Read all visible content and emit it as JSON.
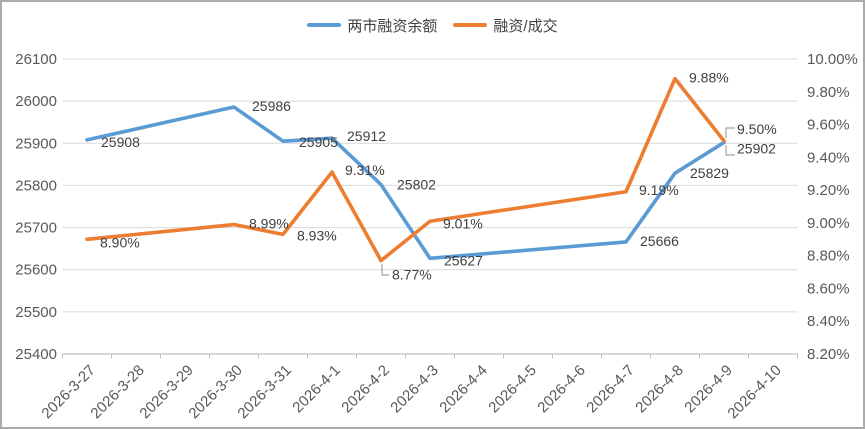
{
  "legend": {
    "items": [
      {
        "label": "两市融资余额",
        "color": "#5B9BD5"
      },
      {
        "label": "融资/成交",
        "color": "#ED7D31"
      }
    ]
  },
  "chart_data": {
    "type": "line",
    "title": "",
    "categories": [
      "2026-3-27",
      "2026-3-28",
      "2026-3-29",
      "2026-3-30",
      "2026-3-31",
      "2026-4-1",
      "2026-4-2",
      "2026-4-3",
      "2026-4-4",
      "2026-4-5",
      "2026-4-6",
      "2026-4-7",
      "2026-4-8",
      "2026-4-9",
      "2026-4-10"
    ],
    "series": [
      {
        "name": "两市融资余额",
        "axis": "left",
        "color": "#5B9BD5",
        "values": [
          25908,
          null,
          null,
          25986,
          25905,
          25912,
          25802,
          25627,
          null,
          null,
          null,
          25666,
          25829,
          25902,
          null
        ],
        "labels": [
          "25908",
          null,
          null,
          "25986",
          "25905",
          "25912",
          "25802",
          "25627",
          null,
          null,
          null,
          "25666",
          "25829",
          "25902",
          null
        ]
      },
      {
        "name": "融资/成交",
        "axis": "right",
        "color": "#ED7D31",
        "values": [
          8.9,
          null,
          null,
          8.99,
          8.93,
          9.31,
          8.77,
          9.01,
          null,
          null,
          null,
          9.19,
          9.88,
          9.5,
          null
        ],
        "labels": [
          "8.90%",
          null,
          null,
          "8.99%",
          "8.93%",
          "9.31%",
          "8.77%",
          "9.01%",
          null,
          null,
          null,
          "9.19%",
          "9.88%",
          "9.50%",
          null
        ]
      }
    ],
    "left_axis": {
      "min": 25400,
      "max": 26100,
      "tick_labels": [
        "26100",
        "26000",
        "25900",
        "25800",
        "25700",
        "25600",
        "25500",
        "25400"
      ]
    },
    "right_axis": {
      "min": 8.2,
      "max": 10.0,
      "tick_labels": [
        "10.00%",
        "9.80%",
        "9.60%",
        "9.40%",
        "9.20%",
        "9.00%",
        "8.80%",
        "8.60%",
        "8.40%",
        "8.20%"
      ]
    },
    "grid": true,
    "legend_position": "top",
    "colors": {
      "gridline": "#d9d9d9",
      "axis_line": "#bfbfbf",
      "axis_text": "#595959",
      "label_text": "#404040",
      "leader_line": "#8c8c8c",
      "frame_border": "#ababab",
      "background": "#ffffff"
    }
  }
}
